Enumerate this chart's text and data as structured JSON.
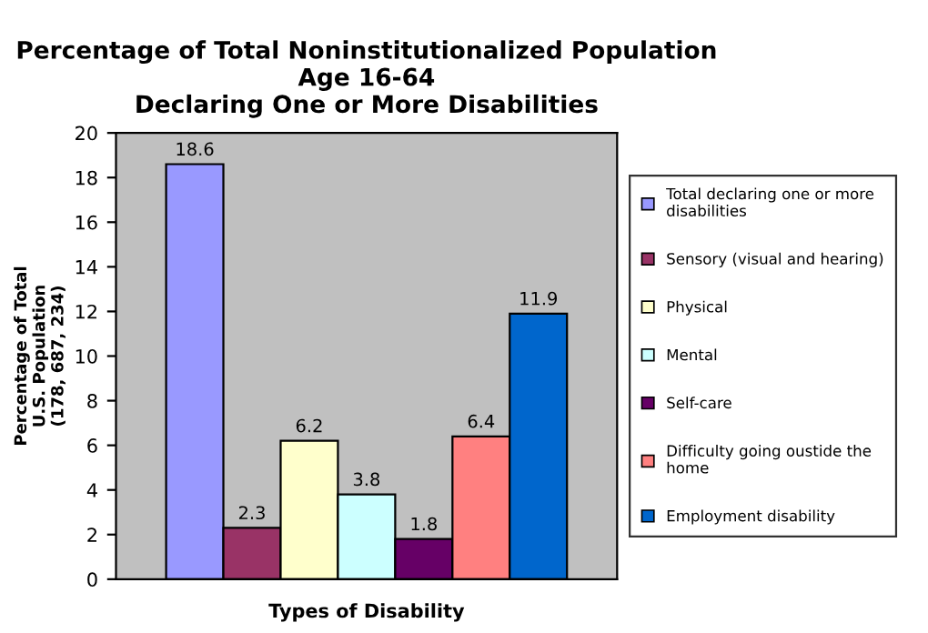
{
  "chart_data": {
    "type": "bar",
    "title": "Percentage of Total Noninstitutionalized Population\nAge 16-64\nDeclaring One or More Disabilities",
    "xlabel": "Types of Disability",
    "ylabel": "Percentage of Total\nU.S. Population\n(178, 687, 234)",
    "categories": [
      null
    ],
    "series": [
      {
        "name": "Total declaring one or more\ndisabilities",
        "color": "#9999ff",
        "values": [
          18.6
        ]
      },
      {
        "name": "Sensory (visual and hearing)",
        "color": "#993366",
        "values": [
          2.3
        ]
      },
      {
        "name": "Physical",
        "color": "#ffffcc",
        "values": [
          6.2
        ]
      },
      {
        "name": "Mental",
        "color": "#ccffff",
        "values": [
          3.8
        ]
      },
      {
        "name": "Self-care",
        "color": "#660066",
        "values": [
          1.8
        ]
      },
      {
        "name": "Difficulty going oustide the\nhome",
        "color": "#ff8080",
        "values": [
          6.4
        ]
      },
      {
        "name": "Employment disability",
        "color": "#0066cc",
        "values": [
          11.9
        ]
      }
    ],
    "ylim": [
      0,
      20
    ],
    "yticks": [
      0,
      2,
      4,
      6,
      8,
      10,
      12,
      14,
      16,
      18,
      20
    ],
    "data_labels": true,
    "grid": false,
    "legend": "right"
  }
}
